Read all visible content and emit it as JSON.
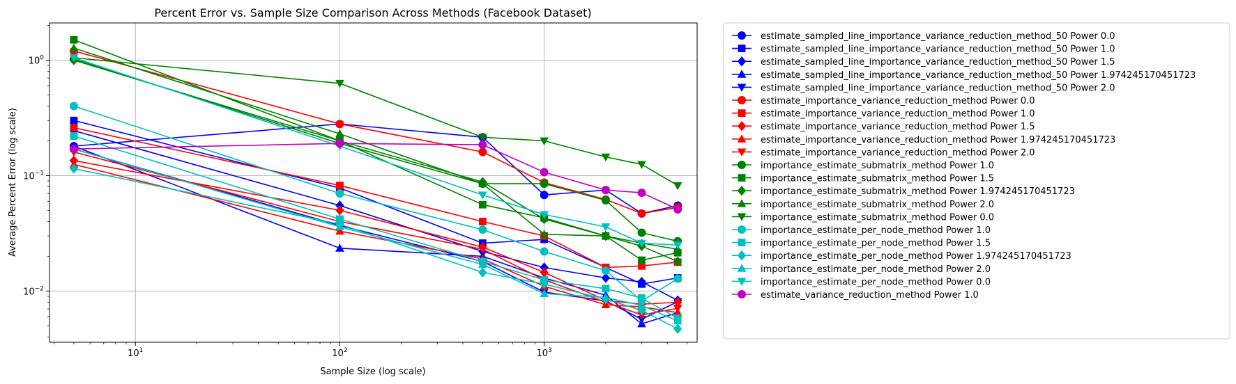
{
  "chart_data": {
    "type": "line",
    "title": "Percent Error vs. Sample Size Comparison Across Methods (Facebook Dataset)",
    "xlabel": "Sample Size (log scale)",
    "ylabel": "Average Percent Error (log scale)",
    "xscale": "log",
    "yscale": "log",
    "xlim": [
      3.8,
      5600
    ],
    "ylim": [
      0.0036,
      2.1
    ],
    "grid": true,
    "legend_position": "outside-right",
    "x": [
      5,
      100,
      500,
      1000,
      2000,
      3000,
      4500
    ],
    "x_ticks": [
      {
        "value": 10,
        "base": "10",
        "exp": "1"
      },
      {
        "value": 100,
        "base": "10",
        "exp": "2"
      },
      {
        "value": 1000,
        "base": "10",
        "exp": "3"
      }
    ],
    "y_ticks": [
      {
        "value": 0.01,
        "base": "10",
        "exp": "−2"
      },
      {
        "value": 0.1,
        "base": "10",
        "exp": "−1"
      },
      {
        "value": 1,
        "base": "10",
        "exp": "0"
      }
    ],
    "series": [
      {
        "name": "estimate_sampled_line_importance_variance_reduction_method_50 Power 0.0",
        "color": "#0000ff",
        "marker": "circle",
        "values": [
          0.18,
          0.28,
          0.215,
          0.068,
          0.075,
          0.047,
          0.055
        ]
      },
      {
        "name": "estimate_sampled_line_importance_variance_reduction_method_50 Power 1.0",
        "color": "#0000ff",
        "marker": "square",
        "values": [
          0.3,
          0.078,
          0.026,
          0.028,
          0.016,
          0.0115,
          0.013
        ]
      },
      {
        "name": "estimate_sampled_line_importance_variance_reduction_method_50 Power 1.5",
        "color": "#0000ff",
        "marker": "diamond",
        "values": [
          0.245,
          0.055,
          0.022,
          0.016,
          0.013,
          0.012,
          0.0083
        ]
      },
      {
        "name": "estimate_sampled_line_importance_variance_reduction_method_50 Power 1.974245170451723",
        "color": "#0000ff",
        "marker": "triangle-up",
        "values": [
          0.18,
          0.0235,
          0.02,
          0.013,
          0.0092,
          0.0052,
          0.0065
        ]
      },
      {
        "name": "estimate_sampled_line_importance_variance_reduction_method_50 Power 2.0",
        "color": "#0000ff",
        "marker": "triangle-down",
        "values": [
          0.17,
          0.037,
          0.018,
          0.0098,
          0.0082,
          0.0057,
          0.0081
        ]
      },
      {
        "name": "estimate_importance_variance_reduction_method Power 0.0",
        "color": "#ff0000",
        "marker": "circle",
        "values": [
          1.2,
          0.28,
          0.16,
          0.087,
          0.062,
          0.047,
          0.053
        ]
      },
      {
        "name": "estimate_importance_variance_reduction_method Power 1.0",
        "color": "#ff0000",
        "marker": "square",
        "values": [
          0.26,
          0.082,
          0.04,
          0.03,
          0.016,
          0.0165,
          0.0178
        ]
      },
      {
        "name": "estimate_importance_variance_reduction_method Power 1.5",
        "color": "#ff0000",
        "marker": "diamond",
        "values": [
          0.135,
          0.05,
          0.024,
          0.0145,
          0.0083,
          0.0077,
          0.008
        ]
      },
      {
        "name": "estimate_importance_variance_reduction_method Power 1.974245170451723",
        "color": "#ff0000",
        "marker": "triangle-up",
        "values": [
          0.125,
          0.033,
          0.019,
          0.011,
          0.0076,
          0.0073,
          0.0065
        ]
      },
      {
        "name": "estimate_importance_variance_reduction_method Power 2.0",
        "color": "#ff0000",
        "marker": "triangle-down",
        "values": [
          0.16,
          0.04,
          0.023,
          0.0125,
          0.008,
          0.0062,
          0.0071
        ]
      },
      {
        "name": "importance_estimate_submatrix_method Power 1.0",
        "color": "#008000",
        "marker": "circle",
        "values": [
          1.02,
          0.19,
          0.085,
          0.085,
          0.061,
          0.032,
          0.027
        ]
      },
      {
        "name": "importance_estimate_submatrix_method Power 1.5",
        "color": "#008000",
        "marker": "square",
        "values": [
          1.5,
          0.2,
          0.056,
          0.043,
          0.03,
          0.0185,
          0.0215
        ]
      },
      {
        "name": "importance_estimate_submatrix_method Power 1.974245170451723",
        "color": "#008000",
        "marker": "diamond",
        "values": [
          1.0,
          0.2,
          0.088,
          0.042,
          0.03,
          0.0245,
          0.018
        ]
      },
      {
        "name": "importance_estimate_submatrix_method Power 2.0",
        "color": "#008000",
        "marker": "triangle-up",
        "values": [
          1.27,
          0.23,
          0.085,
          0.031,
          0.03,
          0.026,
          0.023
        ]
      },
      {
        "name": "importance_estimate_submatrix_method Power 0.0",
        "color": "#008000",
        "marker": "triangle-down",
        "values": [
          1.05,
          0.63,
          0.215,
          0.2,
          0.145,
          0.125,
          0.082
        ]
      },
      {
        "name": "importance_estimate_per_node_method Power 1.0",
        "color": "#00bfbf",
        "marker": "circle",
        "values": [
          0.4,
          0.07,
          0.034,
          0.022,
          0.015,
          0.0082,
          0.0128
        ]
      },
      {
        "name": "importance_estimate_per_node_method Power 1.5",
        "color": "#00bfbf",
        "marker": "square",
        "values": [
          0.22,
          0.042,
          0.018,
          0.0125,
          0.0105,
          0.0087,
          0.0058
        ]
      },
      {
        "name": "importance_estimate_per_node_method Power 1.974245170451723",
        "color": "#00bfbf",
        "marker": "diamond",
        "values": [
          0.115,
          0.038,
          0.0145,
          0.0115,
          0.0085,
          0.0068,
          0.0047
        ]
      },
      {
        "name": "importance_estimate_per_node_method Power 2.0",
        "color": "#00bfbf",
        "marker": "triangle-up",
        "values": [
          0.17,
          0.036,
          0.017,
          0.0095,
          0.0088,
          0.0075,
          0.0055
        ]
      },
      {
        "name": "importance_estimate_per_node_method Power 0.0",
        "color": "#00bfbf",
        "marker": "triangle-down",
        "values": [
          1.05,
          0.18,
          0.068,
          0.046,
          0.036,
          0.026,
          0.025
        ]
      },
      {
        "name": "estimate_variance_reduction_method Power 1.0",
        "color": "#bf00bf",
        "marker": "circle",
        "values": [
          0.17,
          0.19,
          0.185,
          0.107,
          0.075,
          0.071,
          0.051
        ]
      }
    ]
  }
}
